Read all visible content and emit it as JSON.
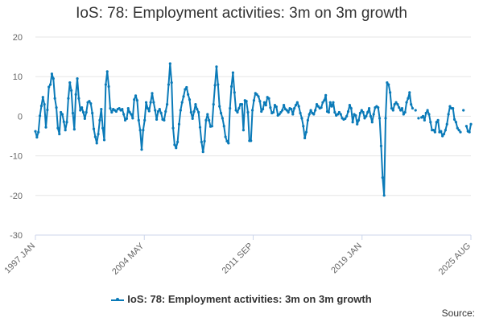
{
  "chart_data": {
    "type": "line",
    "title": "IoS: 78: Employment activities: 3m on 3m growth",
    "xlabel": "",
    "ylabel": "",
    "ylim": [
      -30,
      20
    ],
    "yticks": [
      20,
      10,
      0,
      -10,
      -20,
      -30
    ],
    "xtick_labels": [
      "1997 JAN",
      "2004 MAY",
      "2011 SEP",
      "2019 JAN",
      "2025 AUG"
    ],
    "grid": true,
    "legend_position": "bottom",
    "source_label": "Source:",
    "series": [
      {
        "name": "IoS: 78: Employment activities: 3m on 3m growth",
        "color": "#0a7ab8",
        "values": [
          -3.8,
          -5.3,
          -4.0,
          0.1,
          2.6,
          4.8,
          3.0,
          -2.8,
          1.6,
          7.4,
          8.0,
          10.7,
          9.5,
          4.5,
          2.2,
          -3.0,
          -4.5,
          1.0,
          0.5,
          -1.4,
          -3.5,
          -1.5,
          4.5,
          8.5,
          6.5,
          0.8,
          -3.3,
          5.5,
          9.5,
          4.5,
          1.5,
          2.2,
          1.0,
          -0.6,
          1.0,
          3.5,
          3.8,
          3.2,
          0.8,
          -3.2,
          -5.2,
          -6.8,
          -4.5,
          -1.0,
          1.8,
          -3.0,
          -6.0,
          8.0,
          11.3,
          7.5,
          2.0,
          1.0,
          1.8,
          1.5,
          1.2,
          1.8,
          2.0,
          1.5,
          1.8,
          0.5,
          -1.0,
          -0.6,
          2.0,
          1.0,
          0.5,
          -0.5,
          4.2,
          5.2,
          4.0,
          -1.0,
          -3.5,
          -8.4,
          -3.5,
          -1.0,
          3.5,
          2.0,
          1.3,
          3.5,
          5.8,
          3.5,
          1.5,
          -0.8,
          1.2,
          1.8,
          0.8,
          -0.8,
          -1.0,
          1.2,
          3.0,
          8.0,
          13.3,
          8.5,
          -3.0,
          -7.2,
          -8.0,
          -6.5,
          -2.0,
          1.5,
          3.5,
          5.0,
          6.8,
          7.3,
          5.5,
          4.2,
          1.0,
          -0.6,
          1.2,
          3.0,
          1.8,
          1.0,
          -2.8,
          -6.5,
          -9.0,
          -6.3,
          -1.0,
          0.5,
          -1.0,
          -2.6,
          -2.5,
          3.0,
          7.8,
          12.5,
          8.0,
          2.5,
          0.8,
          -0.5,
          -2.5,
          -5.2,
          -6.3,
          -6.8,
          2.0,
          7.5,
          11.0,
          6.0,
          1.5,
          1.0,
          2.0,
          3.0,
          3.0,
          -3.5,
          4.0,
          3.8,
          1.0,
          -6.2,
          -6.2,
          1.5,
          4.0,
          5.8,
          5.5,
          5.0,
          3.8,
          1.2,
          1.8,
          3.5,
          2.8,
          4.8,
          4.5,
          2.2,
          0.8,
          1.0,
          2.8,
          2.4,
          0.2,
          0.5,
          1.0,
          1.5,
          2.8,
          1.8,
          1.5,
          1.0,
          2.0,
          1.8,
          0.5,
          2.0,
          2.8,
          3.5,
          2.5,
          0.8,
          -0.5,
          -2.5,
          -5.5,
          -4.0,
          -1.0,
          0.5,
          1.5,
          0.8,
          0.5,
          1.5,
          3.0,
          2.5,
          2.0,
          2.2,
          3.5,
          4.0,
          5.3,
          1.2,
          1.0,
          3.5,
          2.5,
          3.5,
          1.0,
          0.2,
          0.5,
          1.0,
          0.5,
          -0.5,
          -0.8,
          -0.6,
          0.0,
          1.2,
          2.8,
          2.0,
          -1.5,
          0.5,
          0.2,
          -2.0,
          -1.0,
          0.8,
          1.5,
          1.0,
          -0.5,
          0.0,
          1.0,
          2.0,
          0.0,
          -1.5,
          0.5,
          2.2,
          2.5,
          2.2,
          -0.5,
          -7.5,
          -15.5,
          -20.0,
          -0.5,
          8.5,
          8.0,
          6.0,
          2.0,
          1.5,
          3.0,
          3.5,
          3.0,
          2.2,
          1.5,
          2.0,
          0.5,
          1.0,
          3.5,
          4.5,
          6.0,
          3.0,
          2.0,
          null,
          1.5,
          null,
          -0.5,
          null,
          -0.3,
          0.0,
          -1.0,
          0.8,
          1.5,
          0.5,
          -1.5,
          -3.5,
          -3.5,
          -4.0,
          -1.5,
          -1.0,
          -4.0,
          -3.8,
          -5.0,
          -4.5,
          -3.5,
          -2.0,
          0.5,
          2.5,
          2.0,
          2.0,
          -0.8,
          -1.5,
          -3.0,
          -3.5,
          -4.0,
          null,
          1.5,
          null,
          -2.5,
          -3.8,
          -4.0,
          -2.0
        ]
      }
    ]
  }
}
